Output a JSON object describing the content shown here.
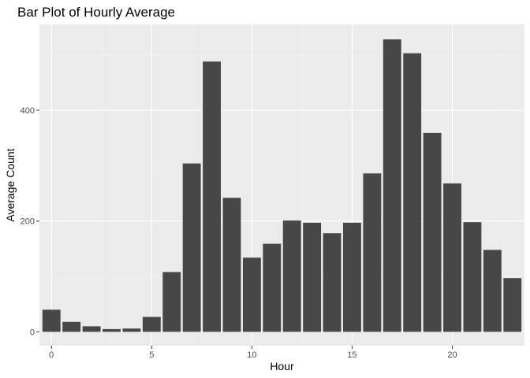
{
  "chart_data": {
    "type": "bar",
    "title": "Bar Plot of Hourly Average",
    "xlabel": "Hour",
    "ylabel": "Average Count",
    "x": [
      0,
      1,
      2,
      3,
      4,
      5,
      6,
      7,
      8,
      9,
      10,
      11,
      12,
      13,
      14,
      15,
      16,
      17,
      18,
      19,
      20,
      21,
      22,
      23
    ],
    "values": [
      40,
      18,
      10,
      5,
      6,
      27,
      108,
      304,
      488,
      242,
      134,
      159,
      201,
      197,
      178,
      197,
      286,
      528,
      503,
      359,
      268,
      198,
      148,
      97
    ],
    "xlim": [
      -0.6,
      23.6
    ],
    "ylim": [
      -25,
      555
    ],
    "xticks": [
      0,
      5,
      10,
      15,
      20
    ],
    "xtick_labels": [
      "0",
      "5",
      "10",
      "15",
      "20"
    ],
    "yticks": [
      0,
      200,
      400
    ],
    "ytick_labels": [
      "0",
      "200",
      "400"
    ],
    "grid": true,
    "legend": "none",
    "bar_color": "#474747",
    "panel_color": "#ebebeb"
  }
}
